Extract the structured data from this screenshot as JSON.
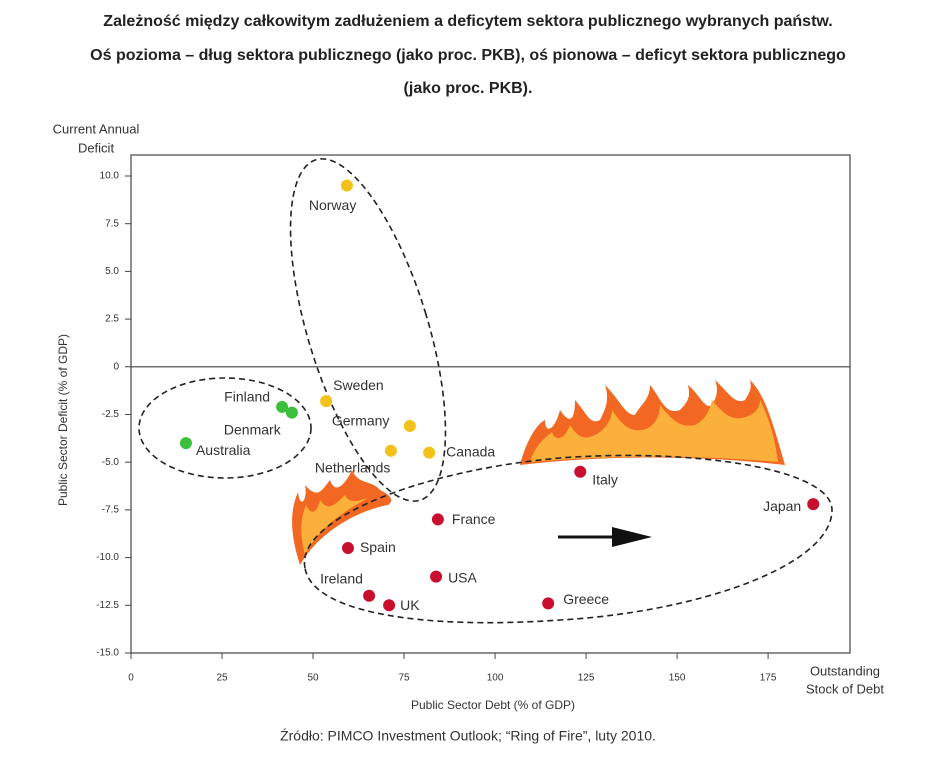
{
  "chart_data": {
    "type": "scatter",
    "title_lines": [
      "Zależność między całkowitym zadłużeniem a deficytem sektora publicznego wybranych państw.",
      "Oś pozioma – dług sektora publicznego (jako proc. PKB), oś pionowa – deficyt sektora publicznego",
      "(jako proc. PKB)."
    ],
    "x_label": "Public Sector Debt (% of GDP)",
    "y_label": "Public Sector Deficit (% of GDP)",
    "y_top_label_lines": [
      "Current Annual",
      "Deficit"
    ],
    "x_end_label_lines": [
      "Outstanding",
      "Stock of Debt"
    ],
    "source": "Źródło: PIMCO Investment Outlook; “Ring of Fire”, luty 2010.",
    "xlim": [
      0,
      197.5
    ],
    "ylim": [
      -15,
      11.1
    ],
    "xticks": [
      0,
      25,
      50,
      75,
      100,
      125,
      150,
      175
    ],
    "yticks": [
      {
        "value": 10,
        "label": "10.0"
      },
      7.5,
      {
        "value": 5,
        "label": "5.0"
      },
      2.5,
      0,
      -2.5,
      {
        "value": -5,
        "label": "-5.0"
      },
      -7.5,
      {
        "value": -10,
        "label": "-10.0"
      },
      -12.5,
      {
        "value": -15,
        "label": "-15.0"
      }
    ],
    "points": [
      {
        "label": "Norway",
        "x": 59.3,
        "y": 9.5,
        "color": "#f2c21b"
      },
      {
        "label": "Finland",
        "x": 41.5,
        "y": -2.1,
        "color": "#3cbf3c"
      },
      {
        "label": "Denmark",
        "x": 44.2,
        "y": -2.4,
        "color": "#3cbf3c"
      },
      {
        "label": "Australia",
        "x": 15.1,
        "y": -4.0,
        "color": "#3cbf3c"
      },
      {
        "label": "Sweden",
        "x": 53.6,
        "y": -1.8,
        "color": "#f2c21b"
      },
      {
        "label": "Germany",
        "x": 76.6,
        "y": -3.1,
        "color": "#f2c21b"
      },
      {
        "label": "Netherlands",
        "x": 71.4,
        "y": -4.4,
        "color": "#f2c21b"
      },
      {
        "label": "Canada",
        "x": 81.9,
        "y": -4.5,
        "color": "#f2c21b"
      },
      {
        "label": "Italy",
        "x": 123.4,
        "y": -5.5,
        "color": "#c8102e"
      },
      {
        "label": "Japan",
        "x": 187.4,
        "y": -7.2,
        "color": "#c8102e"
      },
      {
        "label": "France",
        "x": 84.3,
        "y": -8.0,
        "color": "#c8102e"
      },
      {
        "label": "Spain",
        "x": 59.6,
        "y": -9.5,
        "color": "#c8102e"
      },
      {
        "label": "USA",
        "x": 83.8,
        "y": -11.0,
        "color": "#c8102e"
      },
      {
        "label": "Ireland",
        "x": 65.4,
        "y": -12.0,
        "color": "#c8102e"
      },
      {
        "label": "UK",
        "x": 70.9,
        "y": -12.5,
        "color": "#c8102e"
      },
      {
        "label": "Greece",
        "x": 114.6,
        "y": -12.4,
        "color": "#c8102e"
      }
    ]
  }
}
